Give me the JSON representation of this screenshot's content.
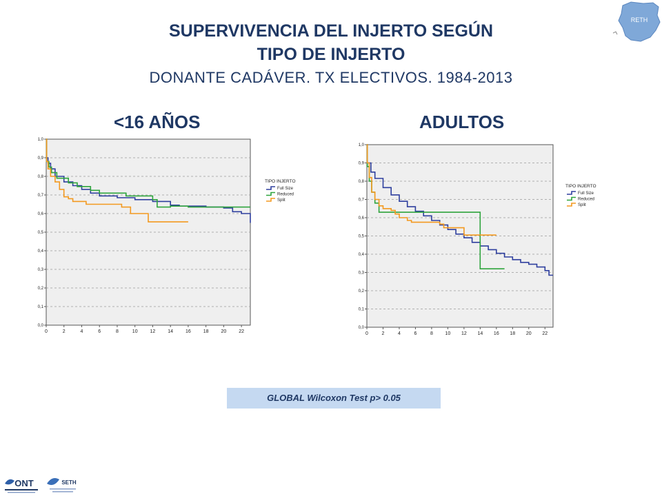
{
  "header": {
    "title_line1": "SUPERVIVENCIA DEL INJERTO SEGÚN",
    "title_line2": "TIPO DE INJERTO",
    "subtitle": "DONANTE CADÁVER. TX ELECTIVOS. 1984-2013"
  },
  "footer": {
    "wilcoxon": "GLOBAL Wilcoxon Test  p> 0.05"
  },
  "logos": {
    "top_right": "RETH",
    "ont": "ONT",
    "seth": "SETH"
  },
  "colors": {
    "title": "#1f3864",
    "full_size": "#2e3f9e",
    "reduced": "#2ea43c",
    "split": "#f3991f",
    "plot_bg": "#efefef",
    "box_bg": "#c5d9f1"
  },
  "chart_data": [
    {
      "type": "line",
      "panel_title": "<16 AÑOS",
      "legend_title": "TIPO INJERTO",
      "legend_position": "right",
      "xlim": [
        0,
        23
      ],
      "ylim": [
        0,
        1
      ],
      "x_ticks": [
        "0",
        "2",
        "4",
        "6",
        "8",
        "10",
        "12",
        "14",
        "16",
        "18",
        "20",
        "22"
      ],
      "y_ticks": [
        "0,0",
        "0,1",
        "0,2",
        "0,3",
        "0,4",
        "0,5",
        "0,6",
        "0,7",
        "0,8",
        "0,9",
        "1,0"
      ],
      "grid": true,
      "series": [
        {
          "name": "Full Size",
          "color": "#2e3f9e",
          "points": [
            [
              0,
              1.0
            ],
            [
              0.05,
              0.9
            ],
            [
              0.2,
              0.87
            ],
            [
              0.5,
              0.84
            ],
            [
              1,
              0.8
            ],
            [
              2,
              0.77
            ],
            [
              3,
              0.75
            ],
            [
              4,
              0.73
            ],
            [
              5,
              0.71
            ],
            [
              6,
              0.695
            ],
            [
              8,
              0.685
            ],
            [
              10,
              0.675
            ],
            [
              12,
              0.665
            ],
            [
              14,
              0.645
            ],
            [
              15,
              0.64
            ],
            [
              18,
              0.635
            ],
            [
              20,
              0.63
            ],
            [
              21,
              0.61
            ],
            [
              22,
              0.6
            ],
            [
              23,
              0.59
            ],
            [
              23,
              0.55
            ]
          ]
        },
        {
          "name": "Reduced",
          "color": "#2ea43c",
          "points": [
            [
              0,
              1.0
            ],
            [
              0.05,
              0.88
            ],
            [
              0.3,
              0.85
            ],
            [
              0.6,
              0.82
            ],
            [
              1.2,
              0.79
            ],
            [
              2.5,
              0.765
            ],
            [
              3.5,
              0.745
            ],
            [
              5,
              0.725
            ],
            [
              6,
              0.71
            ],
            [
              9,
              0.695
            ],
            [
              12,
              0.675
            ],
            [
              12.5,
              0.635
            ],
            [
              14,
              0.64
            ],
            [
              16,
              0.635
            ],
            [
              20,
              0.635
            ],
            [
              23,
              0.635
            ]
          ]
        },
        {
          "name": "Split",
          "color": "#f3991f",
          "points": [
            [
              0,
              1.0
            ],
            [
              0.05,
              0.88
            ],
            [
              0.2,
              0.84
            ],
            [
              0.5,
              0.8
            ],
            [
              1,
              0.77
            ],
            [
              1.5,
              0.73
            ],
            [
              2,
              0.69
            ],
            [
              2.5,
              0.68
            ],
            [
              3,
              0.665
            ],
            [
              4.5,
              0.65
            ],
            [
              8,
              0.65
            ],
            [
              8.5,
              0.635
            ],
            [
              9.5,
              0.6
            ],
            [
              11.5,
              0.555
            ],
            [
              16,
              0.555
            ]
          ]
        }
      ]
    },
    {
      "type": "line",
      "panel_title": "ADULTOS",
      "legend_title": "TIPO INJERTO",
      "legend_position": "right",
      "xlim": [
        0,
        23
      ],
      "ylim": [
        0,
        1
      ],
      "x_ticks": [
        "0",
        "2",
        "4",
        "6",
        "8",
        "10",
        "12",
        "14",
        "16",
        "18",
        "20",
        "22"
      ],
      "y_ticks": [
        "0,0",
        "0,1",
        "0,2",
        "0,3",
        "0,4",
        "0,5",
        "0,6",
        "0,7",
        "0,8",
        "0,9",
        "1,0"
      ],
      "grid": true,
      "series": [
        {
          "name": "Full Size",
          "color": "#2e3f9e",
          "points": [
            [
              0,
              1.0
            ],
            [
              0.05,
              0.9
            ],
            [
              0.5,
              0.85
            ],
            [
              1,
              0.815
            ],
            [
              2,
              0.765
            ],
            [
              3,
              0.725
            ],
            [
              4,
              0.69
            ],
            [
              5,
              0.66
            ],
            [
              6,
              0.635
            ],
            [
              7,
              0.61
            ],
            [
              8,
              0.585
            ],
            [
              9,
              0.56
            ],
            [
              10,
              0.535
            ],
            [
              11,
              0.51
            ],
            [
              12,
              0.49
            ],
            [
              13,
              0.465
            ],
            [
              14,
              0.445
            ],
            [
              15,
              0.425
            ],
            [
              16,
              0.405
            ],
            [
              17,
              0.385
            ],
            [
              18,
              0.37
            ],
            [
              19,
              0.355
            ],
            [
              20,
              0.345
            ],
            [
              21,
              0.33
            ],
            [
              22,
              0.31
            ],
            [
              22.5,
              0.285
            ],
            [
              23,
              0.285
            ]
          ]
        },
        {
          "name": "Reduced",
          "color": "#2ea43c",
          "points": [
            [
              0,
              1.0
            ],
            [
              0.05,
              0.88
            ],
            [
              0.3,
              0.8
            ],
            [
              0.6,
              0.74
            ],
            [
              1,
              0.68
            ],
            [
              1.5,
              0.63
            ],
            [
              2,
              0.63
            ],
            [
              14,
              0.63
            ],
            [
              14,
              0.32
            ],
            [
              17,
              0.32
            ]
          ]
        },
        {
          "name": "Split",
          "color": "#f3991f",
          "points": [
            [
              0,
              1.0
            ],
            [
              0.05,
              0.9
            ],
            [
              0.3,
              0.82
            ],
            [
              0.6,
              0.74
            ],
            [
              1,
              0.7
            ],
            [
              1.5,
              0.665
            ],
            [
              2,
              0.65
            ],
            [
              3,
              0.64
            ],
            [
              3.5,
              0.62
            ],
            [
              4,
              0.6
            ],
            [
              5,
              0.585
            ],
            [
              5.5,
              0.575
            ],
            [
              8,
              0.575
            ],
            [
              9,
              0.565
            ],
            [
              9.5,
              0.545
            ],
            [
              12,
              0.545
            ],
            [
              12,
              0.505
            ],
            [
              16,
              0.505
            ]
          ]
        }
      ]
    }
  ]
}
